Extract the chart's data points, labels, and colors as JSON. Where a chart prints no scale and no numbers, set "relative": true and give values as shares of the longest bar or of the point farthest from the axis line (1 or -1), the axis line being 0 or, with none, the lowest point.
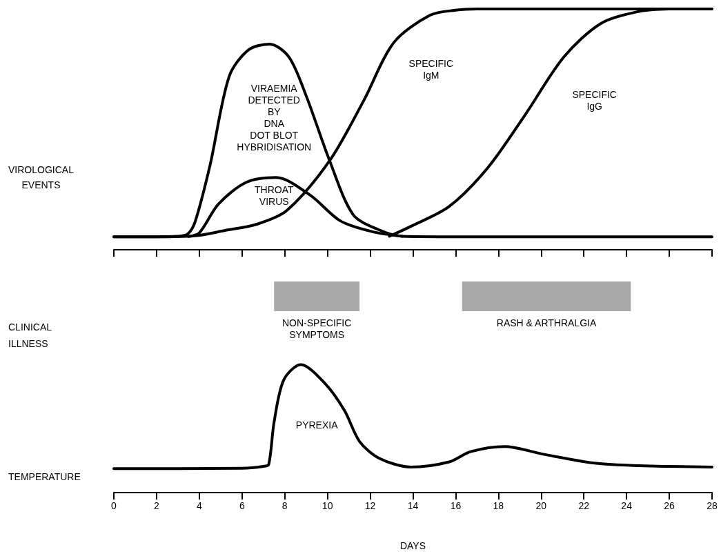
{
  "chart_data": [
    {
      "type": "line",
      "ylabel": "VIROLOGICAL\nEVENTS",
      "relative": true,
      "xlim": [
        0,
        28
      ],
      "xticks": [
        0,
        2,
        4,
        6,
        8,
        10,
        12,
        14,
        16,
        18,
        20,
        22,
        24,
        26,
        28
      ],
      "tick_labels": false,
      "series": [
        {
          "name": "VIRAEMIA\nDETECTED\nBY\nDNA\nDOT BLOT\nHYBRIDISATION",
          "color": "#000000",
          "x": [
            0,
            2,
            3,
            3.45,
            3.8,
            4.5,
            5.4,
            6.3,
            7.3,
            8.2,
            9,
            10.1,
            11.2,
            12.4,
            13.5,
            16,
            20,
            28
          ],
          "values": [
            0.054,
            0.054,
            0.056,
            0.065,
            0.115,
            0.35,
            0.72,
            0.83,
            0.854,
            0.8,
            0.64,
            0.37,
            0.146,
            0.083,
            0.056,
            0.054,
            0.054,
            0.054
          ]
        },
        {
          "name": "THROAT\nVIRUS",
          "color": "#000000",
          "x": [
            3.5,
            4,
            4.9,
            6.2,
            7.6,
            9.2,
            10.6,
            12.1,
            13.5
          ],
          "values": [
            0.055,
            0.07,
            0.19,
            0.28,
            0.3,
            0.226,
            0.12,
            0.075,
            0.056
          ]
        },
        {
          "name": "SPECIFIC\nIgM",
          "color": "#000000",
          "x": [
            0,
            2,
            3.8,
            5.2,
            6.7,
            8.1,
            10.1,
            11.7,
            13.1,
            14.8,
            16,
            17,
            20,
            24,
            28
          ],
          "values": [
            0.054,
            0.054,
            0.058,
            0.08,
            0.106,
            0.163,
            0.37,
            0.62,
            0.86,
            0.974,
            0.995,
            1,
            1,
            1,
            1
          ]
        },
        {
          "name": "SPECIFIC\nIgG",
          "color": "#000000",
          "x": [
            12.9,
            13.9,
            15.7,
            17.5,
            19.25,
            21.06,
            22.8,
            24.6,
            26
          ],
          "values": [
            0.056,
            0.097,
            0.18,
            0.34,
            0.56,
            0.8,
            0.94,
            0.99,
            1
          ]
        }
      ]
    },
    {
      "type": "line",
      "ylabel": "TEMPERATURE",
      "xlabel": "DAYS",
      "relative": true,
      "xlim": [
        0,
        28
      ],
      "xticks": [
        0,
        2,
        4,
        6,
        8,
        10,
        12,
        14,
        16,
        18,
        20,
        22,
        24,
        26,
        28
      ],
      "annotations": [
        "CLINICAL\nILLNESS"
      ],
      "bands": [
        {
          "axis": "x",
          "from": 7.5,
          "to": 11.5,
          "label": "NON-SPECIFIC\nSYMPTOMS",
          "color": "#a8a8a8"
        },
        {
          "axis": "x",
          "from": 16.3,
          "to": 24.2,
          "label": "RASH & ARTHRALGIA",
          "color": "#a8a8a8"
        }
      ],
      "series": [
        {
          "name": "PYREXIA",
          "color": "#000000",
          "x": [
            0,
            3,
            6,
            7,
            7.25,
            7.5,
            7.95,
            8.75,
            9.9,
            10.8,
            11.5,
            12.4,
            13.9,
            15.7,
            16.7,
            18.3,
            20.1,
            22.5,
            24.6,
            28
          ],
          "values": [
            0.188,
            0.188,
            0.19,
            0.205,
            0.22,
            0.55,
            0.88,
            1,
            0.85,
            0.64,
            0.4,
            0.27,
            0.2,
            0.24,
            0.32,
            0.36,
            0.3,
            0.23,
            0.21,
            0.2
          ]
        }
      ]
    }
  ]
}
